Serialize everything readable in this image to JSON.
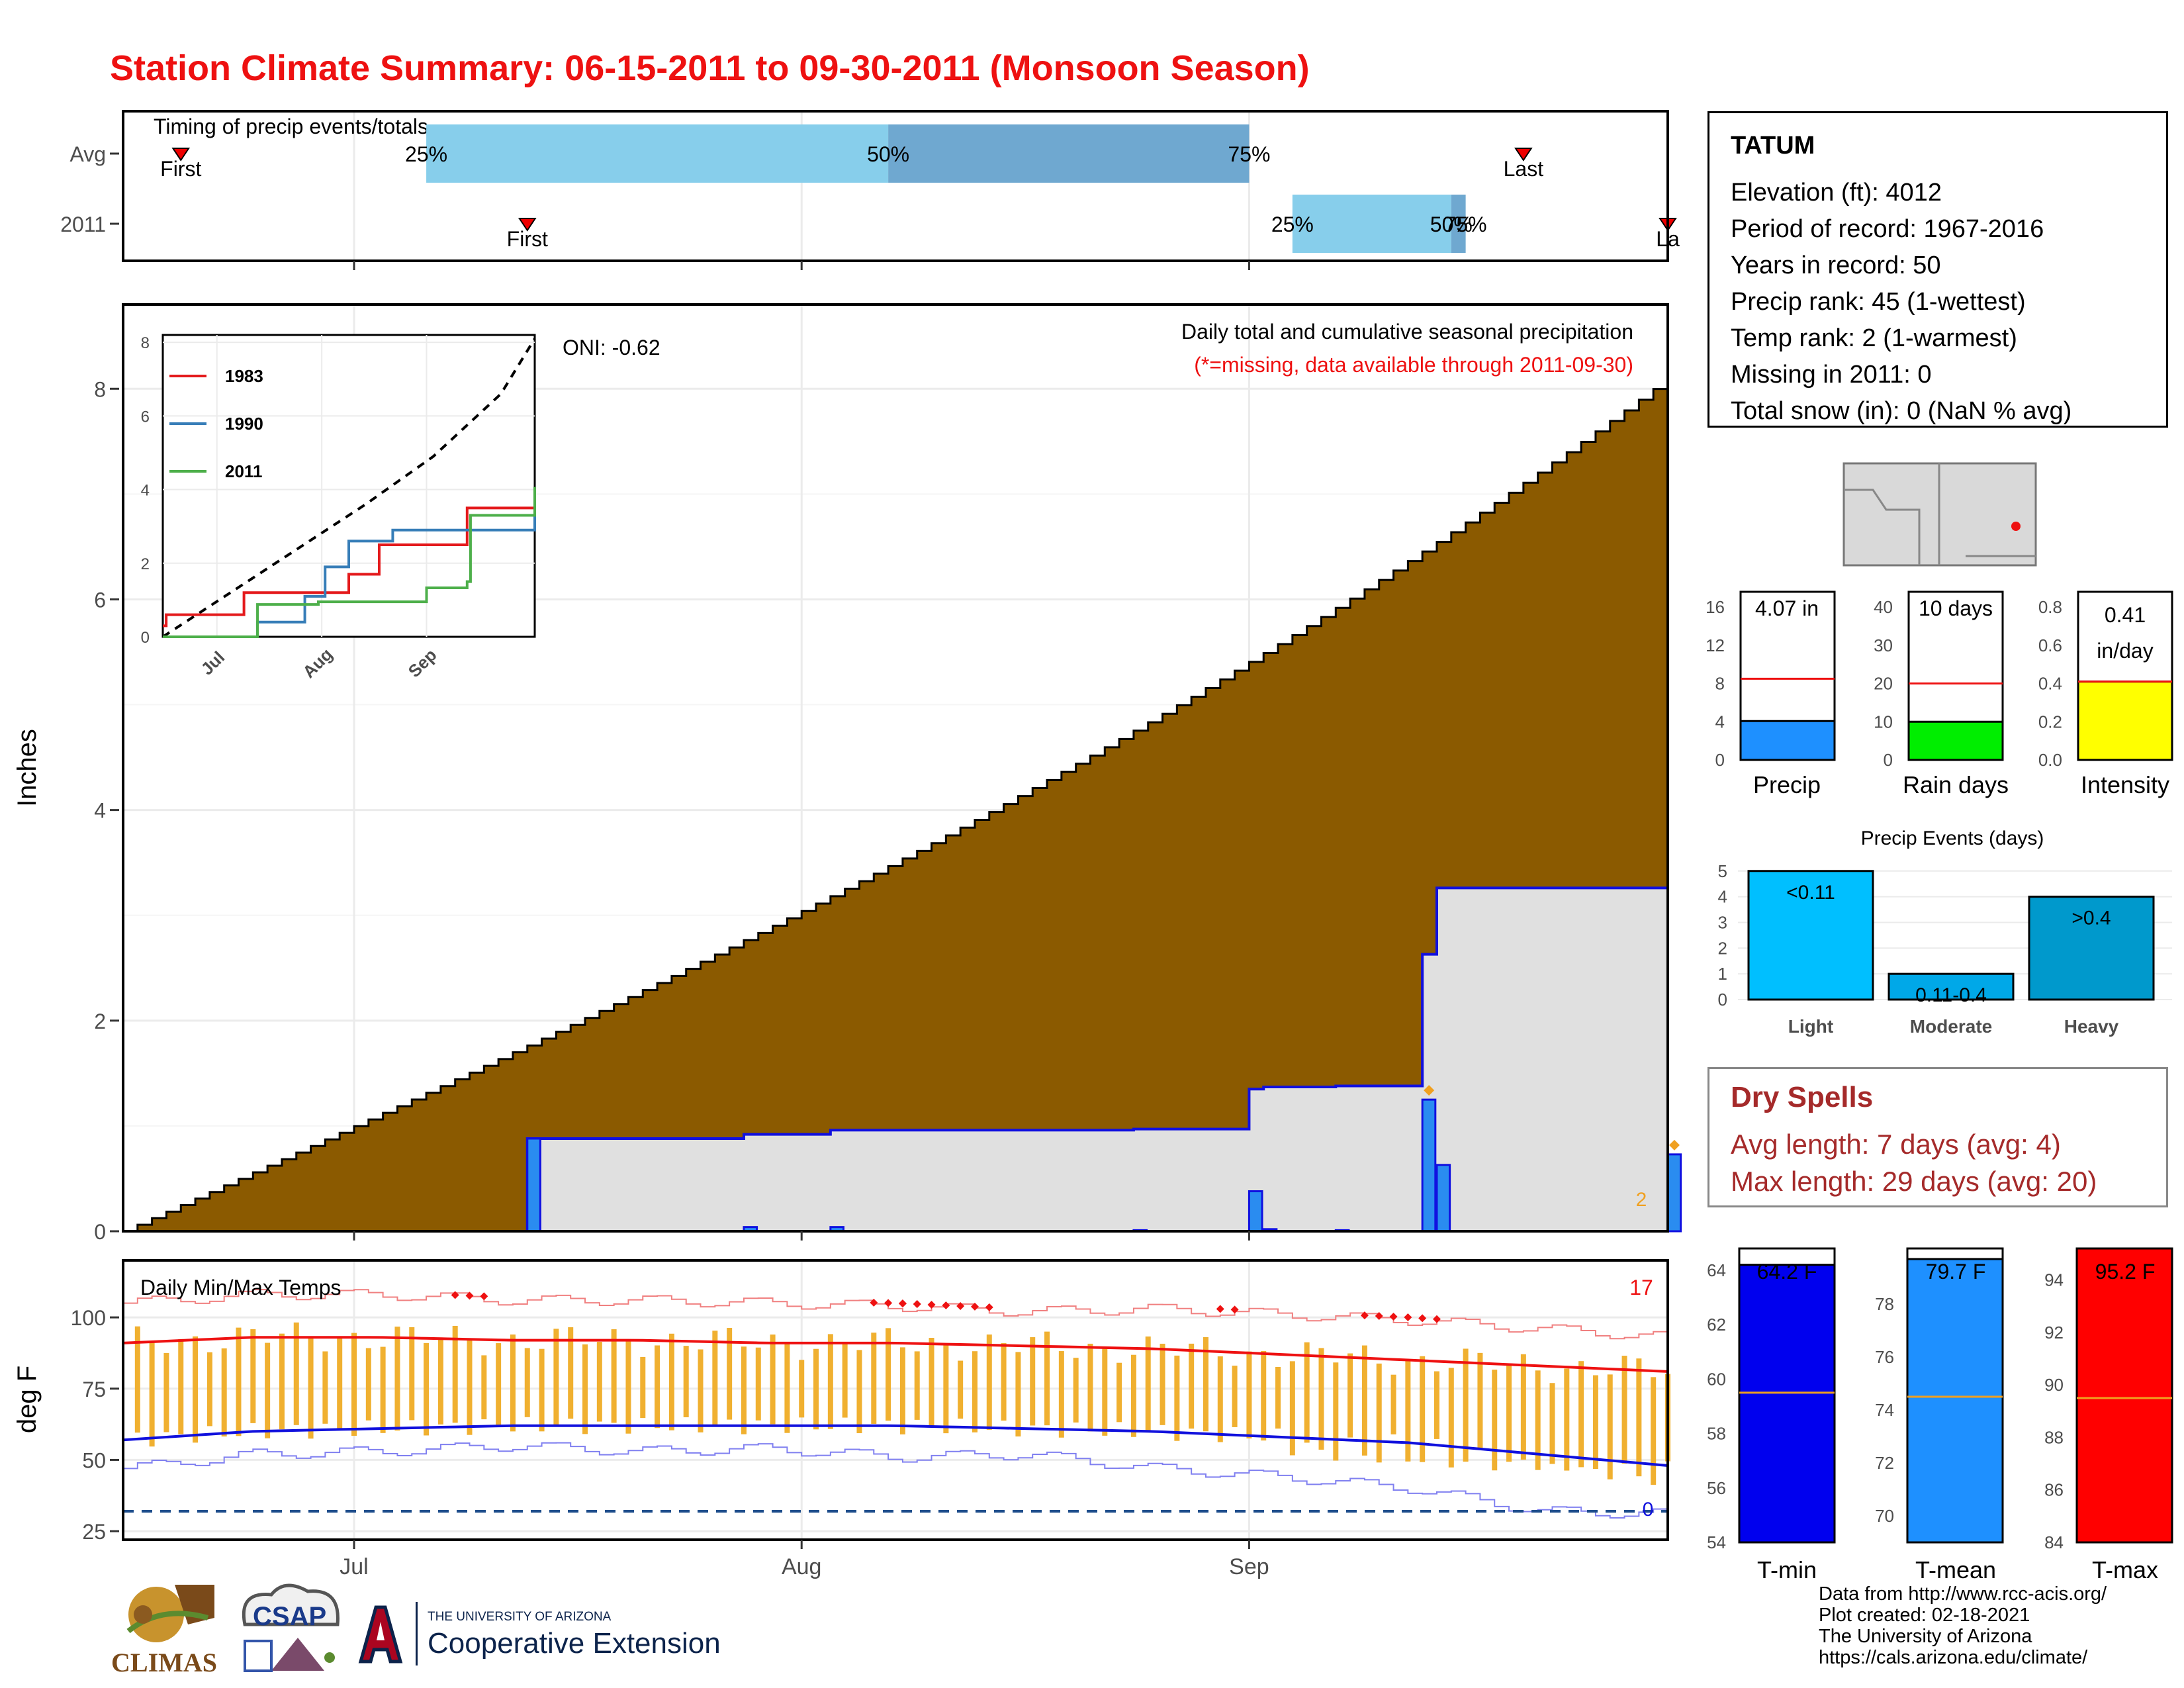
{
  "page_title": "Station Climate Summary: 06-15-2011 to 09-30-2011 (Monsoon Season)",
  "colors": {
    "title": "#ee1111",
    "cumulative_fill": "#8b5a00",
    "year_fill": "#e0e0e0",
    "year_line": "#1010e0",
    "daily_bar": "#2a8cf0",
    "q_light": "#87ceeb",
    "q_dark": "#6fa8d0",
    "temp_bar": "#f0b030"
  },
  "timing_panel": {
    "title": "Timing of precip events/totals",
    "rows": [
      {
        "label": "Avg",
        "first_label": "First",
        "last_label": "Last",
        "first_date": "2011-06-19",
        "last_date": "2011-09-20",
        "q25": "2011-07-06",
        "q50": "2011-08-07",
        "q75": "2011-09-01",
        "q25_label": "25%",
        "q50_label": "50%",
        "q75_label": "75%"
      },
      {
        "label": "2011",
        "first_label": "First",
        "last_label": "La",
        "first_date": "2011-07-13",
        "last_date": "2011-09-30",
        "q25": "2011-09-04",
        "q50": "2011-09-15",
        "q75": "2011-09-16",
        "q25_label": "25%",
        "q50_label": "50%",
        "q75_label": "75%"
      }
    ]
  },
  "precip_panel": {
    "title": "Daily total and cumulative seasonal precipitation",
    "subtitle": "(*=missing, data available through 2011-09-30)",
    "oni": "ONI: -0.62",
    "ylabel": "Inches",
    "yticks": [
      "0",
      "2",
      "4",
      "6",
      "8"
    ],
    "end_count": "2"
  },
  "inset": {
    "yticks": [
      "0",
      "2",
      "4",
      "6",
      "8"
    ],
    "xticks": [
      "Jul",
      "Aug",
      "Sep"
    ],
    "legend": [
      {
        "name": "1983",
        "color": "#e41a1c"
      },
      {
        "name": "1990",
        "color": "#377eb8"
      },
      {
        "name": "2011",
        "color": "#4daf4a"
      }
    ]
  },
  "temp_panel": {
    "title": "Daily Min/Max Temps",
    "ylabel": "deg F",
    "yticks": [
      "25",
      "50",
      "75",
      "100"
    ],
    "count_max": "17",
    "count_min": "0",
    "xticks": [
      "Jul",
      "Aug",
      "Sep"
    ]
  },
  "station": {
    "name": "TATUM",
    "lines": [
      "Elevation (ft): 4012",
      "Period of record: 1967-2016",
      "Years in record: 50",
      "Precip rank: 45 (1-wettest)",
      "Temp rank: 2 (1-warmest)",
      "Missing in 2011: 0",
      "Total snow (in): 0 (NaN % avg)"
    ]
  },
  "mini_bars": [
    {
      "label": "Precip",
      "value_label": "4.07 in",
      "yticks": [
        "0",
        "4",
        "8",
        "12",
        "16"
      ]
    },
    {
      "label": "Rain days",
      "value_label": "10 days",
      "yticks": [
        "0",
        "10",
        "20",
        "30",
        "40"
      ]
    },
    {
      "label": "Intensity",
      "value_label_1": "0.41",
      "value_label_2": "in/day",
      "yticks": [
        "0.0",
        "0.2",
        "0.4",
        "0.6",
        "0.8"
      ]
    }
  ],
  "events_panel": {
    "title": "Precip Events (days)",
    "yticks": [
      "0",
      "1",
      "2",
      "3",
      "4",
      "5"
    ],
    "bars": [
      {
        "cat": "Light",
        "label": "<0.11"
      },
      {
        "cat": "Moderate",
        "label": "0.11-0.4"
      },
      {
        "cat": "Heavy",
        "label": ">0.4"
      }
    ]
  },
  "dry_spells": {
    "title": "Dry Spells",
    "avg": "Avg length: 7 days (avg: 4)",
    "max": "Max length: 29 days (avg: 20)"
  },
  "temp_summary": [
    {
      "label": "T-min",
      "value_label": "64.2 F",
      "yticks": [
        "54",
        "56",
        "58",
        "60",
        "62",
        "64"
      ]
    },
    {
      "label": "T-mean",
      "value_label": "79.7 F",
      "yticks": [
        "70",
        "72",
        "74",
        "76",
        "78"
      ]
    },
    {
      "label": "T-max",
      "value_label": "95.2 F",
      "yticks": [
        "84",
        "86",
        "88",
        "90",
        "92",
        "94"
      ]
    }
  ],
  "credits": [
    "Data from http://www.rcc-acis.org/",
    "Plot created: 02-18-2021",
    "The University of Arizona",
    "https://cals.arizona.edu/climate/"
  ],
  "logos": {
    "climas": "CLIMAS",
    "csap": "CSAP",
    "ua_line1": "THE UNIVERSITY OF ARIZONA",
    "ua_line2": "Cooperative Extension"
  },
  "chart_data": [
    {
      "type": "area",
      "name": "cumulative precipitation",
      "x_range": [
        "2011-06-15",
        "2011-09-30"
      ],
      "ylim": [
        0,
        8.8
      ],
      "ylabel": "Inches",
      "average_cumulative_end": 8.1,
      "year_cumulative_end": 4.07,
      "daily_2011": [
        {
          "date": "2011-07-13",
          "value": 0.88
        },
        {
          "date": "2011-07-28",
          "value": 0.04
        },
        {
          "date": "2011-08-03",
          "value": 0.04
        },
        {
          "date": "2011-08-24",
          "value": 0.01
        },
        {
          "date": "2011-09-01",
          "value": 0.38
        },
        {
          "date": "2011-09-02",
          "value": 0.02
        },
        {
          "date": "2011-09-07",
          "value": 0.01
        },
        {
          "date": "2011-09-13",
          "value": 1.25
        },
        {
          "date": "2011-09-14",
          "value": 0.63
        },
        {
          "date": "2011-09-30",
          "value": 0.73
        }
      ],
      "record_years": [
        {
          "name": "1983",
          "points": [
            [
              0,
              0.3
            ],
            [
              1,
              0.6
            ],
            [
              24,
              1.2
            ],
            [
              55,
              1.7
            ],
            [
              64,
              2.5
            ],
            [
              90,
              3.5
            ],
            [
              110,
              3.6
            ]
          ]
        },
        {
          "name": "1990",
          "points": [
            [
              0,
              0
            ],
            [
              25,
              0
            ],
            [
              28,
              0.4
            ],
            [
              42,
              1.1
            ],
            [
              48,
              1.9
            ],
            [
              55,
              2.6
            ],
            [
              68,
              2.9
            ],
            [
              110,
              3.5
            ]
          ]
        },
        {
          "name": "2011",
          "points": [
            [
              0,
              0
            ],
            [
              28,
              0
            ],
            [
              28,
              0.88
            ],
            [
              46,
              0.95
            ],
            [
              78,
              1.33
            ],
            [
              90,
              1.5
            ],
            [
              91,
              3.3
            ],
            [
              109,
              3.3
            ],
            [
              110,
              4.07
            ]
          ]
        }
      ],
      "average_curve_points": [
        [
          0,
          0
        ],
        [
          20,
          1.2
        ],
        [
          40,
          2.4
        ],
        [
          60,
          3.6
        ],
        [
          80,
          4.9
        ],
        [
          100,
          6.6
        ],
        [
          110,
          8.1
        ]
      ]
    },
    {
      "type": "line",
      "name": "daily temperatures",
      "ylim": [
        22,
        120
      ],
      "ylabel": "deg F",
      "avg_max": [
        91,
        93,
        93,
        92,
        92,
        91,
        91,
        90,
        89,
        87,
        85,
        83,
        81
      ],
      "avg_min": [
        57,
        60,
        61,
        62,
        62,
        62,
        62,
        61,
        60,
        58,
        56,
        52,
        48
      ],
      "record_max": [
        105,
        108,
        108,
        106,
        106,
        105,
        104,
        102,
        103,
        101,
        99,
        96,
        93
      ],
      "record_min": [
        47,
        52,
        53,
        55,
        53,
        54,
        51,
        52,
        47,
        44,
        40,
        32,
        31
      ],
      "freeze_line": 32
    },
    {
      "type": "bar",
      "name": "seasonal precip vs avg",
      "values": [
        {
          "label": "Precip",
          "value": 4.07,
          "avg": 8.5,
          "ylim": [
            0,
            16
          ]
        },
        {
          "label": "Rain days",
          "value": 10,
          "avg": 20,
          "ylim": [
            0,
            40
          ]
        },
        {
          "label": "Intensity",
          "value": 0.41,
          "avg": 0.41,
          "ylim": [
            0,
            0.8
          ]
        }
      ]
    },
    {
      "type": "bar",
      "name": "precip events",
      "categories": [
        "Light",
        "Moderate",
        "Heavy"
      ],
      "values": [
        5,
        1,
        4
      ],
      "ylim": [
        0,
        5.2
      ]
    },
    {
      "type": "bar",
      "name": "temperature summary",
      "values": [
        {
          "label": "T-min",
          "value": 64.2,
          "avg": 59.5,
          "ylim": [
            54,
            64.8
          ]
        },
        {
          "label": "T-mean",
          "value": 79.7,
          "avg": 74.5,
          "ylim": [
            69,
            80.1
          ]
        },
        {
          "label": "T-max",
          "value": 95.2,
          "avg": 89.5,
          "ylim": [
            84,
            95.2
          ]
        }
      ]
    }
  ]
}
